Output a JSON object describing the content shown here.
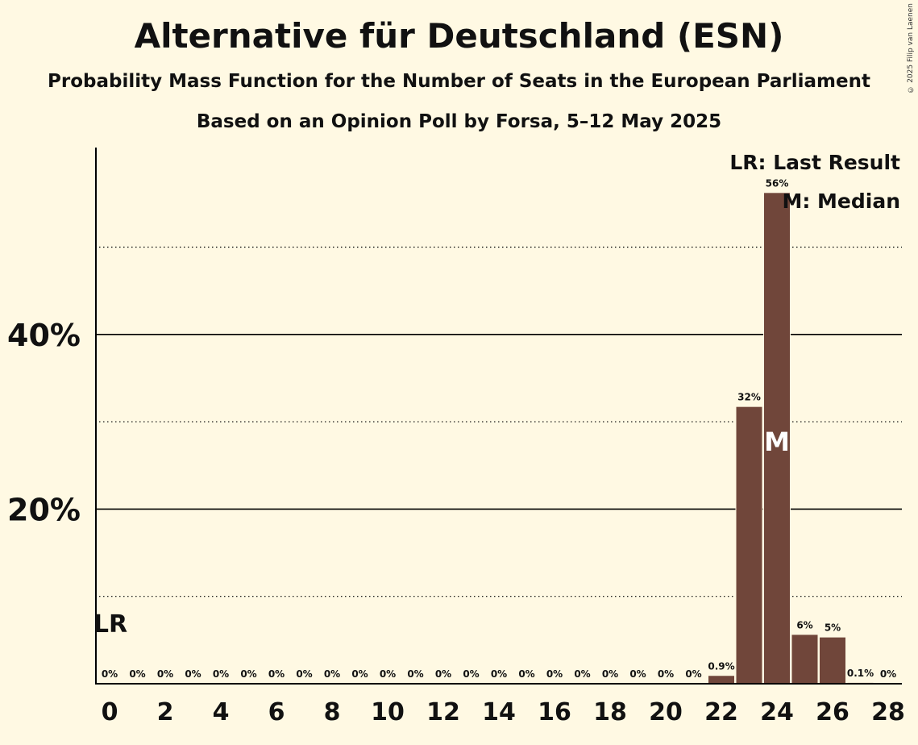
{
  "header": {
    "title": "Alternative für Deutschland (ESN)",
    "subtitle": "Probability Mass Function for the Number of Seats in the European Parliament",
    "source": "Based on an Opinion Poll by Forsa, 5–12 May 2025",
    "copyright": "© 2025 Filip van Laenen"
  },
  "chart_data": {
    "type": "bar",
    "x": [
      0,
      1,
      2,
      3,
      4,
      5,
      6,
      7,
      8,
      9,
      10,
      11,
      12,
      13,
      14,
      15,
      16,
      17,
      18,
      19,
      20,
      21,
      22,
      23,
      24,
      25,
      26,
      27,
      28
    ],
    "values": [
      0,
      0,
      0,
      0,
      0,
      0,
      0,
      0,
      0,
      0,
      0,
      0,
      0,
      0,
      0,
      0,
      0,
      0,
      0,
      0,
      0,
      0,
      0.9,
      31.7,
      56.2,
      5.6,
      5.3,
      0.1,
      0
    ],
    "value_labels": [
      "0%",
      "0%",
      "0%",
      "0%",
      "0%",
      "0%",
      "0%",
      "0%",
      "0%",
      "0%",
      "0%",
      "0%",
      "0%",
      "0%",
      "0%",
      "0%",
      "0%",
      "0%",
      "0%",
      "0%",
      "0%",
      "0%",
      "0.9%",
      "32%",
      "56%",
      "6%",
      "5%",
      "0.1%",
      "0%"
    ],
    "x_ticks": [
      "0",
      "2",
      "4",
      "6",
      "8",
      "10",
      "12",
      "14",
      "16",
      "18",
      "20",
      "22",
      "24",
      "26",
      "28"
    ],
    "y_ticks": [
      {
        "value": 20,
        "label": "20%"
      },
      {
        "value": 40,
        "label": "40%"
      }
    ],
    "y_minor_gridlines": [
      10,
      30,
      50
    ],
    "ylim": [
      0,
      61.4
    ],
    "last_result_seat": 0,
    "last_result_label": "LR",
    "median_seat": 24,
    "median_label": "M",
    "legend": [
      "LR: Last Result",
      "M: Median"
    ],
    "legend_position": "top-right",
    "bar_color": "#70463A"
  }
}
